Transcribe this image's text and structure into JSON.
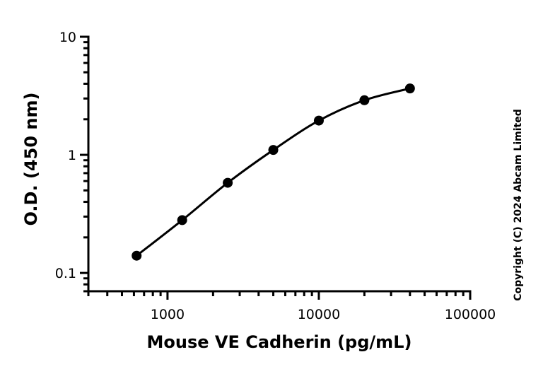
{
  "chart_data": {
    "type": "scatter",
    "xlabel": "Mouse VE Cadherin (pg/mL)",
    "ylabel": "O.D. (450 nm)",
    "xscale": "log",
    "yscale": "log",
    "xlim": [
      300,
      100000
    ],
    "ylim": [
      0.07,
      10
    ],
    "x_ticks": [
      1000,
      10000,
      100000
    ],
    "x_tick_labels": [
      "1000",
      "10000",
      "100000"
    ],
    "y_ticks": [
      0.1,
      1,
      10
    ],
    "y_tick_labels": [
      "0.1",
      "1",
      "10"
    ],
    "series": [
      {
        "x": [
          625,
          1250,
          2500,
          5000,
          10000,
          20000,
          40000
        ],
        "y": [
          0.14,
          0.28,
          0.58,
          1.1,
          1.95,
          2.9,
          3.65
        ],
        "marker": "circle",
        "color": "#000000",
        "fit_curve": true
      }
    ],
    "grid": false,
    "legend": "none"
  },
  "copyright": "Copyright (C) 2024 Abcam Limited"
}
